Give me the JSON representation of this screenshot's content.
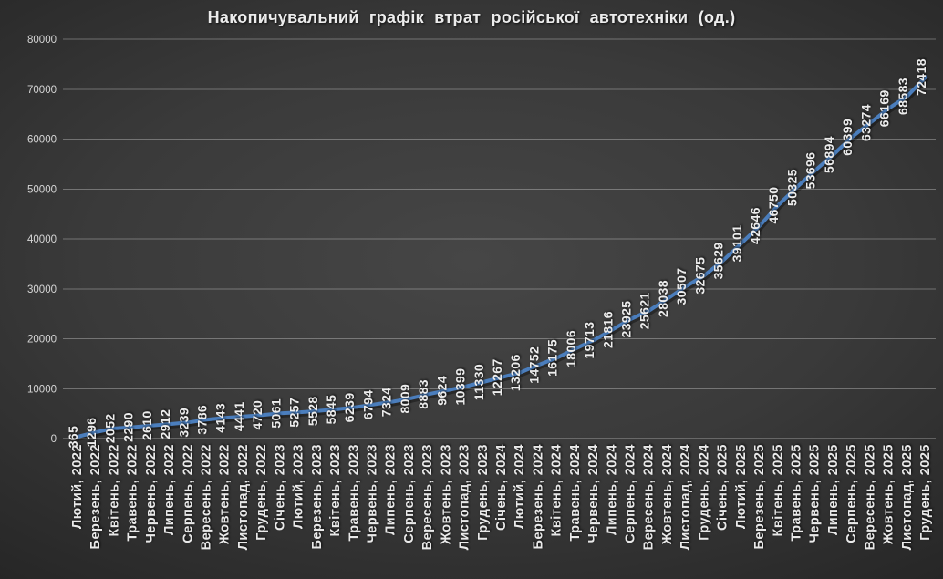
{
  "chart_data": {
    "type": "line",
    "title": "Накопичувальний графік втрат російської автотехніки (од.)",
    "xlabel": "",
    "ylabel": "",
    "ylim": [
      0,
      80000
    ],
    "yticks": [
      0,
      10000,
      20000,
      30000,
      40000,
      50000,
      60000,
      70000,
      80000
    ],
    "grid": true,
    "legend": false,
    "line_color": "#4b7ebd",
    "label_color": "#ececec",
    "axis_text_color": "#d6d6d6",
    "data_labels_visible": true,
    "categories": [
      "Лютий, 2022",
      "Березень, 2022",
      "Квітень, 2022",
      "Травень, 2022",
      "Червень, 2022",
      "Липень, 2022",
      "Серпень, 2022",
      "Вересень, 2022",
      "Жовтень, 2022",
      "Листопад, 2022",
      "Грудень, 2022",
      "Січень, 2023",
      "Лютий, 2023",
      "Березень, 2023",
      "Квітень, 2023",
      "Травень, 2023",
      "Червень, 2023",
      "Липень, 2023",
      "Серпень, 2023",
      "Вересень, 2023",
      "Жовтень, 2023",
      "Листопад, 2023",
      "Грудень, 2023",
      "Січень, 2024",
      "Лютий, 2024",
      "Березень, 2024",
      "Квітень, 2024",
      "Травень, 2024",
      "Червень, 2024",
      "Липень, 2024",
      "Серпень, 2024",
      "Вересень, 2024",
      "Жовтень, 2024",
      "Листопад, 2024",
      "Грудень, 2024",
      "Січень, 2025",
      "Лютий, 2025",
      "Березень, 2025",
      "Квітень, 2025",
      "Травень, 2025",
      "Червень, 2025",
      "Липень, 2025",
      "Серпень, 2025",
      "Вересень, 2025",
      "Жовтень, 2025",
      "Листопад, 2025",
      "Грудень, 2025"
    ],
    "values": [
      365,
      1296,
      2052,
      2290,
      2610,
      2912,
      3239,
      3786,
      4143,
      4441,
      4720,
      5061,
      5257,
      5528,
      5845,
      6239,
      6794,
      7324,
      8009,
      8883,
      9624,
      10399,
      11330,
      12267,
      13206,
      14752,
      16175,
      18006,
      19713,
      21816,
      23925,
      25621,
      28038,
      30507,
      32675,
      35629,
      39101,
      42646,
      46750,
      50325,
      53696,
      56894,
      60399,
      63274,
      66169,
      68583,
      72418
    ]
  }
}
